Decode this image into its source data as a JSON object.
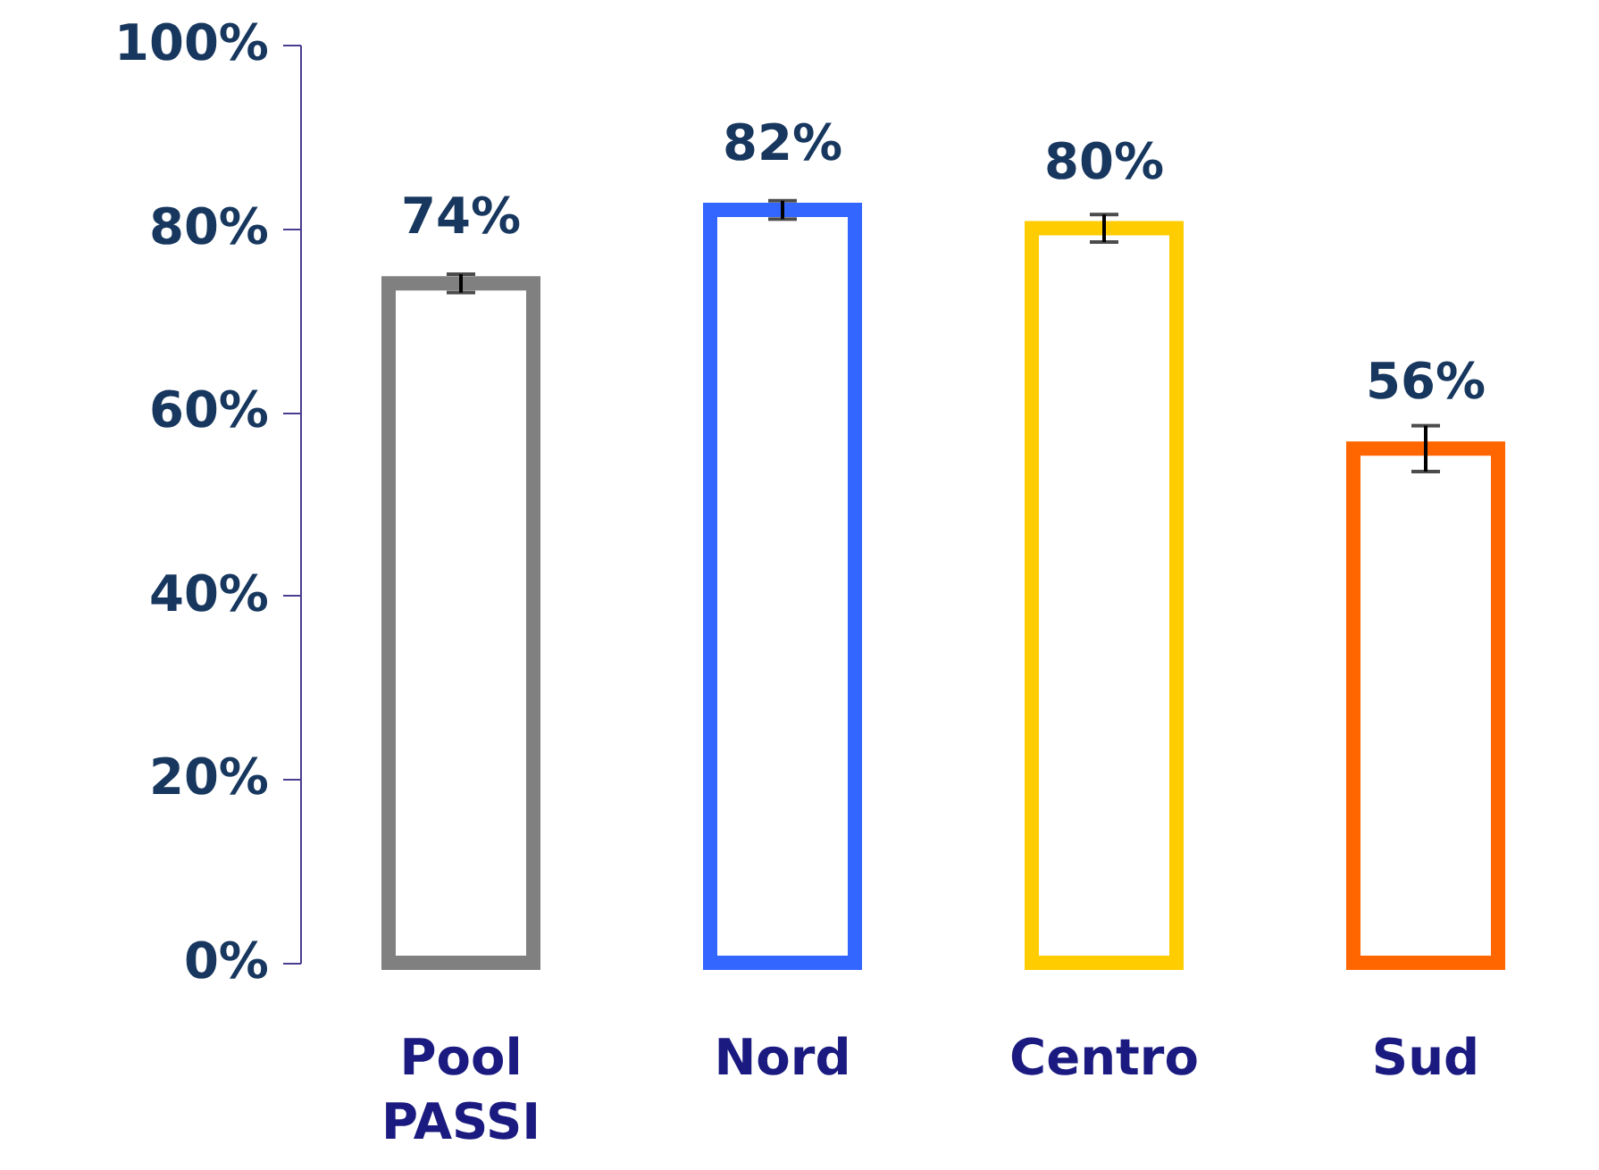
{
  "chart_data": {
    "type": "bar",
    "categories": [
      "Pool PASSI",
      "Nord",
      "Centro",
      "Sud"
    ],
    "values": [
      74,
      82,
      80,
      56
    ],
    "colors": [
      "#808080",
      "#3366ff",
      "#ffcc00",
      "#ff6600"
    ],
    "errors": [
      1,
      1,
      1.5,
      2.5
    ],
    "value_labels": [
      "74%",
      "82%",
      "80%",
      "56%"
    ],
    "ylim": [
      0,
      100
    ],
    "yticks": [
      {
        "value": 0,
        "label": "0%"
      },
      {
        "value": 20,
        "label": "20%"
      },
      {
        "value": 40,
        "label": "40%"
      },
      {
        "value": 60,
        "label": "60%"
      },
      {
        "value": 80,
        "label": "80%"
      },
      {
        "value": 100,
        "label": "100%"
      }
    ],
    "grid": false
  }
}
